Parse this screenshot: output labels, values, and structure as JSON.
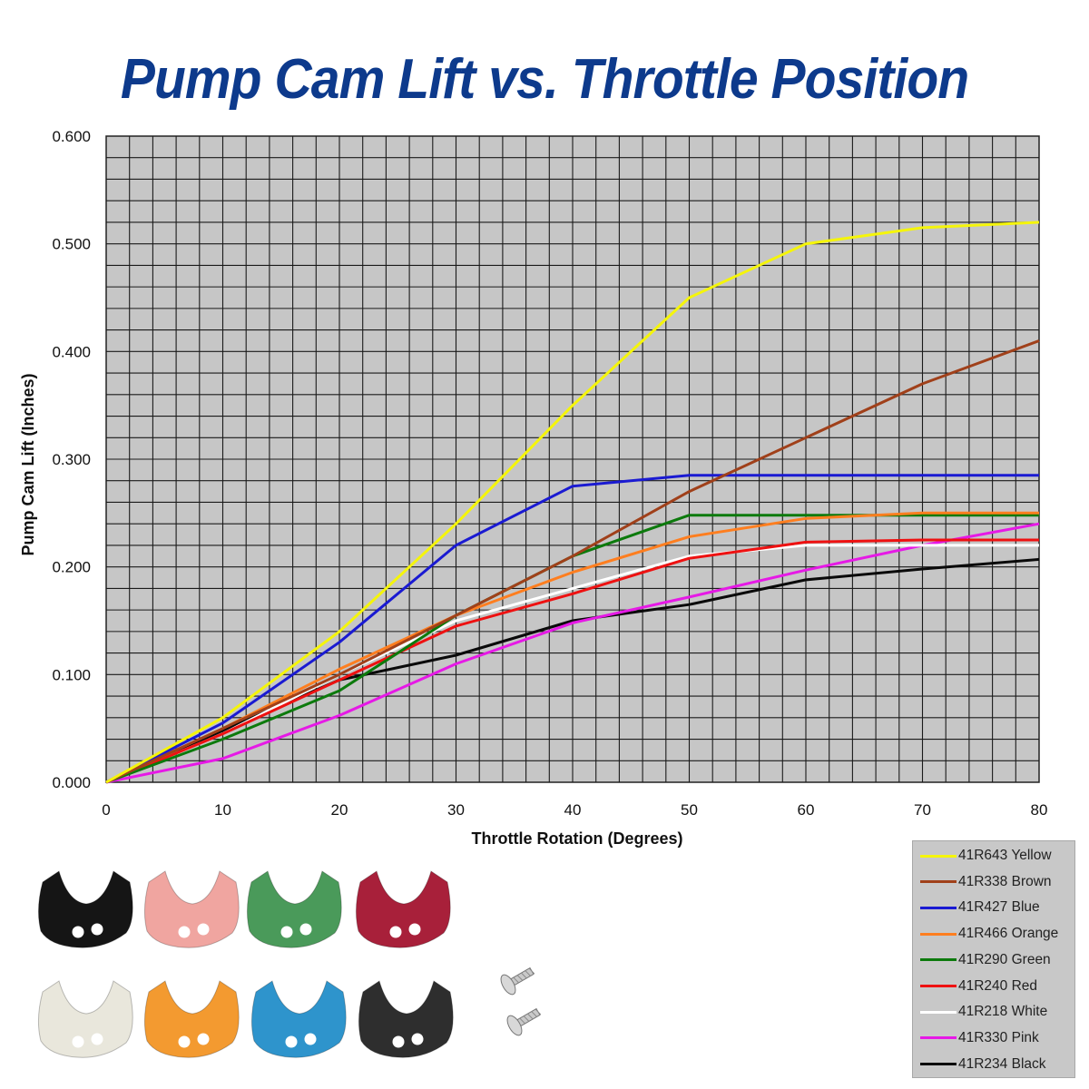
{
  "chart_data": {
    "type": "line",
    "title": "Pump Cam Lift vs. Throttle Position",
    "xlabel": "Throttle Rotation (Degrees)",
    "ylabel": "Pump Cam Lift (Inches)",
    "xlim": [
      0,
      80
    ],
    "ylim": [
      0,
      0.6
    ],
    "xticks": [
      "0",
      "10",
      "20",
      "30",
      "40",
      "50",
      "60",
      "70",
      "80"
    ],
    "yticks": [
      "0.000",
      "0.100",
      "0.200",
      "0.300",
      "0.400",
      "0.500",
      "0.600"
    ],
    "grid": true,
    "legend_position": "bottom-right",
    "series": [
      {
        "name": "41R643 Yellow",
        "color": "#f5f50a",
        "x": [
          0,
          10,
          20,
          30,
          40,
          50,
          60,
          70,
          80
        ],
        "y": [
          0,
          0.06,
          0.14,
          0.24,
          0.35,
          0.45,
          0.5,
          0.515,
          0.52
        ]
      },
      {
        "name": "41R338 Brown",
        "color": "#a0401a",
        "x": [
          0,
          10,
          20,
          30,
          40,
          50,
          60,
          70,
          80
        ],
        "y": [
          0,
          0.05,
          0.1,
          0.155,
          0.21,
          0.27,
          0.32,
          0.37,
          0.41
        ]
      },
      {
        "name": "41R427 Blue",
        "color": "#1a1ad2",
        "x": [
          0,
          10,
          20,
          30,
          40,
          50,
          60,
          70,
          80
        ],
        "y": [
          0,
          0.055,
          0.13,
          0.22,
          0.275,
          0.285,
          0.285,
          0.285,
          0.285
        ]
      },
      {
        "name": "41R466 Orange",
        "color": "#ff7e1f",
        "x": [
          0,
          10,
          20,
          30,
          40,
          50,
          60,
          70,
          80
        ],
        "y": [
          0,
          0.05,
          0.105,
          0.155,
          0.195,
          0.228,
          0.245,
          0.25,
          0.25
        ]
      },
      {
        "name": "41R290 Green",
        "color": "#0c7a0c",
        "x": [
          0,
          10,
          20,
          30,
          40,
          50,
          60,
          70,
          80
        ],
        "y": [
          0,
          0.04,
          0.085,
          0.155,
          0.21,
          0.248,
          0.248,
          0.248,
          0.248
        ]
      },
      {
        "name": "41R240 Red",
        "color": "#ee1111",
        "x": [
          0,
          10,
          20,
          30,
          40,
          50,
          60,
          70,
          80
        ],
        "y": [
          0,
          0.045,
          0.095,
          0.145,
          0.175,
          0.208,
          0.223,
          0.225,
          0.225
        ]
      },
      {
        "name": "41R218 White",
        "color": "#ffffff",
        "x": [
          0,
          10,
          20,
          30,
          40,
          50,
          60,
          70,
          80
        ],
        "y": [
          0,
          0.045,
          0.1,
          0.15,
          0.18,
          0.21,
          0.22,
          0.22,
          0.22
        ]
      },
      {
        "name": "41R330 Pink",
        "color": "#e619e6",
        "x": [
          0,
          10,
          20,
          30,
          40,
          50,
          60,
          70,
          80
        ],
        "y": [
          0,
          0.022,
          0.062,
          0.11,
          0.148,
          0.172,
          0.197,
          0.22,
          0.24
        ]
      },
      {
        "name": "41R234 Black",
        "color": "#0a0a0a",
        "x": [
          0,
          10,
          20,
          30,
          40,
          50,
          60,
          70,
          80
        ],
        "y": [
          0,
          0.048,
          0.095,
          0.118,
          0.15,
          0.165,
          0.188,
          0.198,
          0.207
        ]
      }
    ]
  },
  "cams": [
    {
      "name": "black-cam",
      "color": "#151515"
    },
    {
      "name": "pink-cam",
      "color": "#f0a5a0"
    },
    {
      "name": "green-cam",
      "color": "#4a9a5a"
    },
    {
      "name": "red-cam",
      "color": "#a8203a"
    },
    {
      "name": "white-cam",
      "color": "#e9e7dc"
    },
    {
      "name": "orange-cam",
      "color": "#f39a30"
    },
    {
      "name": "blue-cam",
      "color": "#2e94cc"
    },
    {
      "name": "dark-grey-cam",
      "color": "#2e2e2e"
    }
  ],
  "screws_color": "#c9c9c9"
}
